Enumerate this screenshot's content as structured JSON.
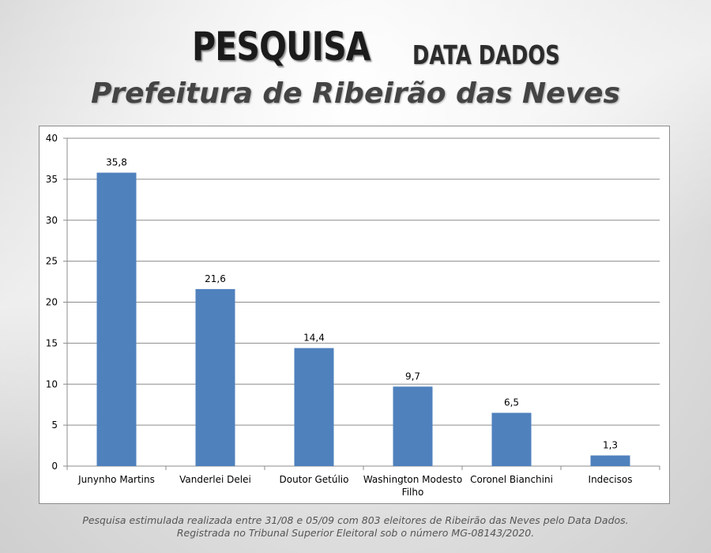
{
  "header": {
    "brand": "PESQUISA",
    "company": "DATA DADOS",
    "title": "Prefeitura de Ribeirão das Neves"
  },
  "footnote": {
    "line1": "Pesquisa estimulada realizada entre 31/08 e 05/09 com 803 eleitores de Ribeirão das Neves pelo Data Dados.",
    "line2": "Registrada no Tribunal Superior Eleitoral sob o número MG-08143/2020."
  },
  "colors": {
    "bar": "#4f81bd",
    "gridline": "#8c8c8c",
    "text": "#000000"
  },
  "chart_data": {
    "type": "bar",
    "categories": [
      "Junynho Martins",
      "Vanderlei Delei",
      "Doutor Getúlio",
      "Washington Modesto Filho",
      "Coronel Bianchini",
      "Indecisos"
    ],
    "values": [
      35.8,
      21.6,
      14.4,
      9.7,
      6.5,
      1.3
    ],
    "value_labels": [
      "35,8",
      "21,6",
      "14,4",
      "9,7",
      "6,5",
      "1,3"
    ],
    "ylim": [
      0,
      40
    ],
    "yticks": [
      0,
      5,
      10,
      15,
      20,
      25,
      30,
      35,
      40
    ],
    "grid": true,
    "legend": "none"
  }
}
